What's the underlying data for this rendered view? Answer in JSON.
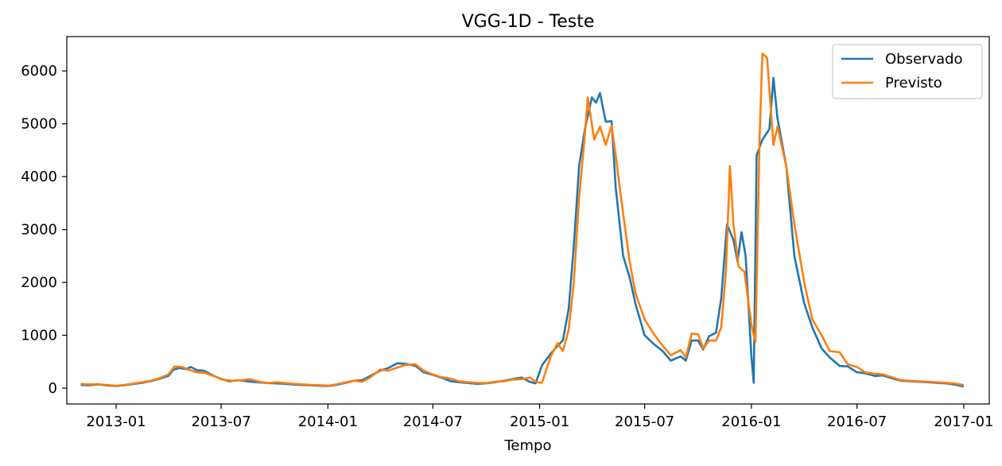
{
  "chart_data": {
    "type": "line",
    "title": "VGG-1D - Teste",
    "xlabel": "Tempo",
    "ylabel": "",
    "x_range": [
      "2012-10-08",
      "2017-02-14"
    ],
    "ylim": [
      -300,
      6650
    ],
    "x_ticks": [
      "2013-01",
      "2013-07",
      "2014-01",
      "2014-07",
      "2015-01",
      "2015-07",
      "2016-01",
      "2016-07",
      "2017-01"
    ],
    "y_ticks": [
      0,
      1000,
      2000,
      3000,
      4000,
      5000,
      6000
    ],
    "grid": false,
    "legend_position": "top-right",
    "series": [
      {
        "name": "Observado",
        "color": "#1f77b4",
        "points": [
          [
            "2012-11-01",
            60
          ],
          [
            "2012-11-15",
            55
          ],
          [
            "2012-12-01",
            70
          ],
          [
            "2012-12-15",
            50
          ],
          [
            "2013-01-01",
            40
          ],
          [
            "2013-01-15",
            55
          ],
          [
            "2013-02-01",
            80
          ],
          [
            "2013-02-15",
            100
          ],
          [
            "2013-03-01",
            130
          ],
          [
            "2013-03-15",
            170
          ],
          [
            "2013-04-01",
            230
          ],
          [
            "2013-04-10",
            350
          ],
          [
            "2013-04-20",
            380
          ],
          [
            "2013-05-01",
            360
          ],
          [
            "2013-05-10",
            400
          ],
          [
            "2013-05-20",
            340
          ],
          [
            "2013-06-01",
            330
          ],
          [
            "2013-06-15",
            250
          ],
          [
            "2013-07-01",
            170
          ],
          [
            "2013-07-15",
            130
          ],
          [
            "2013-08-01",
            150
          ],
          [
            "2013-08-15",
            130
          ],
          [
            "2013-09-01",
            110
          ],
          [
            "2013-09-15",
            100
          ],
          [
            "2013-10-01",
            90
          ],
          [
            "2013-10-15",
            85
          ],
          [
            "2013-11-01",
            70
          ],
          [
            "2013-11-15",
            60
          ],
          [
            "2013-12-01",
            55
          ],
          [
            "2013-12-15",
            45
          ],
          [
            "2014-01-01",
            40
          ],
          [
            "2014-01-15",
            60
          ],
          [
            "2014-02-01",
            100
          ],
          [
            "2014-02-15",
            140
          ],
          [
            "2014-03-01",
            150
          ],
          [
            "2014-03-15",
            230
          ],
          [
            "2014-04-01",
            330
          ],
          [
            "2014-04-15",
            380
          ],
          [
            "2014-05-01",
            470
          ],
          [
            "2014-05-15",
            460
          ],
          [
            "2014-06-01",
            420
          ],
          [
            "2014-06-15",
            300
          ],
          [
            "2014-07-01",
            250
          ],
          [
            "2014-07-15",
            200
          ],
          [
            "2014-08-01",
            130
          ],
          [
            "2014-08-15",
            110
          ],
          [
            "2014-09-01",
            95
          ],
          [
            "2014-09-15",
            80
          ],
          [
            "2014-10-01",
            90
          ],
          [
            "2014-10-15",
            110
          ],
          [
            "2014-11-01",
            140
          ],
          [
            "2014-11-15",
            170
          ],
          [
            "2014-12-01",
            200
          ],
          [
            "2014-12-15",
            120
          ],
          [
            "2014-12-25",
            90
          ],
          [
            "2015-01-05",
            430
          ],
          [
            "2015-01-20",
            650
          ],
          [
            "2015-02-01",
            800
          ],
          [
            "2015-02-10",
            900
          ],
          [
            "2015-02-20",
            1500
          ],
          [
            "2015-03-01",
            2700
          ],
          [
            "2015-03-10",
            4200
          ],
          [
            "2015-03-20",
            4900
          ],
          [
            "2015-04-01",
            5500
          ],
          [
            "2015-04-08",
            5400
          ],
          [
            "2015-04-15",
            5580
          ],
          [
            "2015-04-25",
            5040
          ],
          [
            "2015-05-05",
            5050
          ],
          [
            "2015-05-12",
            3800
          ],
          [
            "2015-05-25",
            2500
          ],
          [
            "2015-06-05",
            2100
          ],
          [
            "2015-06-15",
            1600
          ],
          [
            "2015-07-01",
            1000
          ],
          [
            "2015-07-15",
            850
          ],
          [
            "2015-08-01",
            700
          ],
          [
            "2015-08-15",
            520
          ],
          [
            "2015-09-01",
            600
          ],
          [
            "2015-09-10",
            520
          ],
          [
            "2015-09-20",
            900
          ],
          [
            "2015-10-01",
            900
          ],
          [
            "2015-10-10",
            730
          ],
          [
            "2015-10-20",
            980
          ],
          [
            "2015-11-01",
            1050
          ],
          [
            "2015-11-10",
            1700
          ],
          [
            "2015-11-20",
            3100
          ],
          [
            "2015-12-01",
            2800
          ],
          [
            "2015-12-08",
            2400
          ],
          [
            "2015-12-15",
            2950
          ],
          [
            "2015-12-22",
            2500
          ],
          [
            "2016-01-01",
            600
          ],
          [
            "2016-01-05",
            100
          ],
          [
            "2016-01-10",
            4400
          ],
          [
            "2016-01-20",
            4700
          ],
          [
            "2016-02-01",
            4900
          ],
          [
            "2016-02-08",
            5870
          ],
          [
            "2016-02-15",
            5100
          ],
          [
            "2016-03-01",
            4200
          ],
          [
            "2016-03-15",
            2500
          ],
          [
            "2016-04-01",
            1600
          ],
          [
            "2016-04-15",
            1150
          ],
          [
            "2016-05-01",
            750
          ],
          [
            "2016-05-15",
            580
          ],
          [
            "2016-06-01",
            420
          ],
          [
            "2016-06-15",
            410
          ],
          [
            "2016-07-01",
            300
          ],
          [
            "2016-07-15",
            280
          ],
          [
            "2016-08-01",
            230
          ],
          [
            "2016-08-15",
            240
          ],
          [
            "2016-09-01",
            180
          ],
          [
            "2016-09-15",
            140
          ],
          [
            "2016-10-01",
            130
          ],
          [
            "2016-10-15",
            120
          ],
          [
            "2016-11-01",
            110
          ],
          [
            "2016-11-15",
            100
          ],
          [
            "2016-12-01",
            90
          ],
          [
            "2016-12-15",
            70
          ],
          [
            "2017-01-01",
            30
          ]
        ]
      },
      {
        "name": "Previsto",
        "color": "#ff7f0e",
        "points": [
          [
            "2012-11-01",
            80
          ],
          [
            "2012-11-15",
            70
          ],
          [
            "2012-12-01",
            75
          ],
          [
            "2012-12-15",
            60
          ],
          [
            "2013-01-01",
            45
          ],
          [
            "2013-01-15",
            60
          ],
          [
            "2013-02-01",
            90
          ],
          [
            "2013-02-15",
            110
          ],
          [
            "2013-03-01",
            140
          ],
          [
            "2013-03-15",
            180
          ],
          [
            "2013-04-01",
            260
          ],
          [
            "2013-04-12",
            410
          ],
          [
            "2013-04-25",
            400
          ],
          [
            "2013-05-05",
            350
          ],
          [
            "2013-05-20",
            300
          ],
          [
            "2013-06-05",
            280
          ],
          [
            "2013-06-20",
            220
          ],
          [
            "2013-07-05",
            160
          ],
          [
            "2013-07-20",
            140
          ],
          [
            "2013-08-05",
            150
          ],
          [
            "2013-08-20",
            170
          ],
          [
            "2013-09-05",
            120
          ],
          [
            "2013-09-20",
            95
          ],
          [
            "2013-10-05",
            110
          ],
          [
            "2013-10-20",
            95
          ],
          [
            "2013-11-05",
            80
          ],
          [
            "2013-11-20",
            70
          ],
          [
            "2013-12-05",
            60
          ],
          [
            "2013-12-20",
            55
          ],
          [
            "2014-01-01",
            45
          ],
          [
            "2014-01-15",
            70
          ],
          [
            "2014-02-01",
            110
          ],
          [
            "2014-02-15",
            140
          ],
          [
            "2014-03-01",
            120
          ],
          [
            "2014-03-15",
            200
          ],
          [
            "2014-04-01",
            350
          ],
          [
            "2014-04-15",
            330
          ],
          [
            "2014-05-01",
            390
          ],
          [
            "2014-05-15",
            440
          ],
          [
            "2014-06-01",
            450
          ],
          [
            "2014-06-15",
            330
          ],
          [
            "2014-07-01",
            260
          ],
          [
            "2014-07-15",
            210
          ],
          [
            "2014-08-01",
            180
          ],
          [
            "2014-08-15",
            130
          ],
          [
            "2014-09-01",
            110
          ],
          [
            "2014-09-15",
            100
          ],
          [
            "2014-10-01",
            95
          ],
          [
            "2014-10-15",
            120
          ],
          [
            "2014-11-01",
            130
          ],
          [
            "2014-11-15",
            160
          ],
          [
            "2014-12-01",
            170
          ],
          [
            "2014-12-15",
            200
          ],
          [
            "2014-12-25",
            120
          ],
          [
            "2015-01-05",
            100
          ],
          [
            "2015-01-20",
            600
          ],
          [
            "2015-02-01",
            850
          ],
          [
            "2015-02-10",
            700
          ],
          [
            "2015-02-20",
            1100
          ],
          [
            "2015-03-01",
            2000
          ],
          [
            "2015-03-10",
            3600
          ],
          [
            "2015-03-20",
            4800
          ],
          [
            "2015-03-25",
            5500
          ],
          [
            "2015-04-05",
            4700
          ],
          [
            "2015-04-15",
            4950
          ],
          [
            "2015-04-25",
            4600
          ],
          [
            "2015-05-05",
            4970
          ],
          [
            "2015-05-12",
            4400
          ],
          [
            "2015-05-25",
            3300
          ],
          [
            "2015-06-05",
            2400
          ],
          [
            "2015-06-15",
            1800
          ],
          [
            "2015-07-01",
            1300
          ],
          [
            "2015-07-15",
            1050
          ],
          [
            "2015-08-01",
            800
          ],
          [
            "2015-08-15",
            620
          ],
          [
            "2015-09-01",
            720
          ],
          [
            "2015-09-10",
            580
          ],
          [
            "2015-09-20",
            1030
          ],
          [
            "2015-10-01",
            1020
          ],
          [
            "2015-10-10",
            750
          ],
          [
            "2015-10-20",
            900
          ],
          [
            "2015-11-01",
            900
          ],
          [
            "2015-11-10",
            1150
          ],
          [
            "2015-11-18",
            2200
          ],
          [
            "2015-11-25",
            4200
          ],
          [
            "2015-12-01",
            3100
          ],
          [
            "2015-12-10",
            2300
          ],
          [
            "2015-12-20",
            2200
          ],
          [
            "2016-01-01",
            1200
          ],
          [
            "2016-01-08",
            870
          ],
          [
            "2016-01-15",
            4700
          ],
          [
            "2016-01-20",
            6330
          ],
          [
            "2016-01-28",
            6250
          ],
          [
            "2016-02-08",
            4600
          ],
          [
            "2016-02-15",
            4950
          ],
          [
            "2016-03-01",
            4200
          ],
          [
            "2016-03-15",
            3100
          ],
          [
            "2016-04-01",
            2000
          ],
          [
            "2016-04-15",
            1300
          ],
          [
            "2016-05-01",
            1000
          ],
          [
            "2016-05-15",
            700
          ],
          [
            "2016-06-01",
            680
          ],
          [
            "2016-06-15",
            450
          ],
          [
            "2016-07-01",
            400
          ],
          [
            "2016-07-15",
            300
          ],
          [
            "2016-08-01",
            270
          ],
          [
            "2016-08-15",
            260
          ],
          [
            "2016-09-01",
            200
          ],
          [
            "2016-09-15",
            150
          ],
          [
            "2016-10-01",
            140
          ],
          [
            "2016-10-15",
            130
          ],
          [
            "2016-11-01",
            120
          ],
          [
            "2016-11-15",
            110
          ],
          [
            "2016-12-01",
            100
          ],
          [
            "2016-12-15",
            90
          ],
          [
            "2017-01-01",
            60
          ]
        ]
      }
    ]
  }
}
